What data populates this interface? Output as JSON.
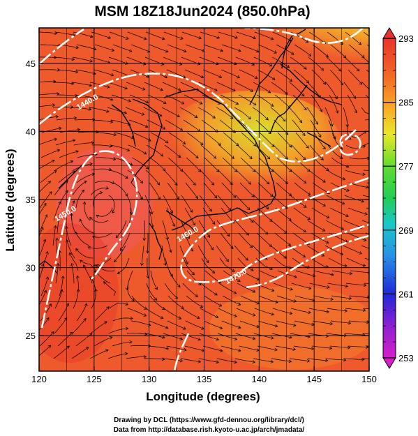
{
  "title": "MSM 18Z18Jun2024 (850.0hPa)",
  "xlabel": "Longitude (degrees)",
  "ylabel": "Latitude  (degrees)",
  "x_ticks": [
    "120",
    "125",
    "130",
    "135",
    "140",
    "145",
    "150"
  ],
  "y_ticks": [
    "25",
    "30",
    "35",
    "40",
    "45"
  ],
  "x_tick_values": [
    120,
    125,
    130,
    135,
    140,
    145,
    150
  ],
  "y_tick_values": [
    25,
    30,
    35,
    40,
    45
  ],
  "lon_range": [
    120,
    150
  ],
  "lat_range": [
    22.4,
    47.6
  ],
  "colorbar": {
    "ticks": [
      "293",
      "285",
      "277",
      "269",
      "261",
      "253"
    ],
    "tick_values": [
      293,
      285,
      277,
      269,
      261,
      253
    ],
    "range": [
      253,
      293
    ]
  },
  "contour_labels": [
    {
      "text": "1440.0",
      "lon": 124.5,
      "lat": 42.0
    },
    {
      "text": "1450.0",
      "lon": 122.5,
      "lat": 33.8
    },
    {
      "text": "1460.0",
      "lon": 133.6,
      "lat": 32.3
    },
    {
      "text": "1470.0",
      "lon": 138.0,
      "lat": 29.2
    }
  ],
  "credits": {
    "line1": "Drawing by DCL (https://www.gfd-dennou.org/library/dcl/)",
    "line2": "Data from http://database.rish.kyoto-u.ac.jp/arch/jmadata/"
  }
}
